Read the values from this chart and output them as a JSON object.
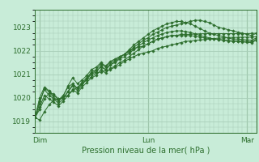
{
  "title": "Pression niveau de la mer( hPa )",
  "background_color": "#c8ecd8",
  "grid_color": "#a8ceb8",
  "line_color": "#2d6e2d",
  "marker_color": "#2d6e2d",
  "ylim": [
    1018.5,
    1023.75
  ],
  "yticks": [
    1019,
    1020,
    1021,
    1022,
    1023
  ],
  "xlim": [
    0,
    47
  ],
  "xtick_positions": [
    1,
    24,
    45
  ],
  "xtick_labels": [
    "Dim",
    "Lun",
    "Mar"
  ],
  "vline_positions": [
    1,
    24,
    45
  ],
  "series": [
    [
      1019.15,
      1019.05,
      1019.4,
      1019.7,
      1019.9,
      1019.95,
      1020.0,
      1020.1,
      1020.3,
      1020.45,
      1020.6,
      1020.75,
      1020.9,
      1021.05,
      1021.1,
      1021.15,
      1021.2,
      1021.3,
      1021.4,
      1021.55,
      1021.65,
      1021.75,
      1021.85,
      1021.9,
      1021.95,
      1022.0,
      1022.1,
      1022.15,
      1022.2,
      1022.25,
      1022.3,
      1022.35,
      1022.4,
      1022.42,
      1022.44,
      1022.46,
      1022.48,
      1022.5,
      1022.52,
      1022.54,
      1022.55,
      1022.56,
      1022.57,
      1022.57,
      1022.58,
      1022.58,
      1022.58,
      1022.6
    ],
    [
      1019.15,
      1019.5,
      1019.95,
      1020.2,
      1020.15,
      1019.95,
      1020.0,
      1020.25,
      1020.55,
      1020.4,
      1020.6,
      1020.8,
      1021.05,
      1021.15,
      1021.3,
      1021.2,
      1021.4,
      1021.55,
      1021.7,
      1021.85,
      1021.95,
      1022.1,
      1022.15,
      1022.2,
      1022.3,
      1022.4,
      1022.5,
      1022.55,
      1022.6,
      1022.65,
      1022.65,
      1022.7,
      1022.7,
      1022.7,
      1022.72,
      1022.72,
      1022.73,
      1022.73,
      1022.73,
      1022.73,
      1022.73,
      1022.73,
      1022.73,
      1022.73,
      1022.73,
      1022.73,
      1022.74,
      1022.75
    ],
    [
      1019.15,
      1019.75,
      1020.4,
      1020.25,
      1020.0,
      1019.85,
      1020.05,
      1020.5,
      1020.85,
      1020.6,
      1020.75,
      1020.95,
      1021.2,
      1021.3,
      1021.5,
      1021.35,
      1021.55,
      1021.65,
      1021.75,
      1021.85,
      1022.05,
      1022.25,
      1022.4,
      1022.55,
      1022.7,
      1022.85,
      1022.95,
      1023.05,
      1023.15,
      1023.2,
      1023.25,
      1023.25,
      1023.2,
      1023.15,
      1023.05,
      1022.95,
      1022.85,
      1022.75,
      1022.7,
      1022.65,
      1022.6,
      1022.55,
      1022.5,
      1022.5,
      1022.48,
      1022.46,
      1022.45,
      1022.55
    ],
    [
      1019.15,
      1020.0,
      1020.45,
      1020.3,
      1020.1,
      1019.9,
      1020.1,
      1020.45,
      1020.6,
      1020.4,
      1020.65,
      1020.85,
      1021.1,
      1021.2,
      1021.45,
      1021.3,
      1021.5,
      1021.6,
      1021.75,
      1021.85,
      1022.0,
      1022.15,
      1022.3,
      1022.45,
      1022.55,
      1022.7,
      1022.8,
      1022.9,
      1023.0,
      1023.05,
      1023.1,
      1023.15,
      1023.2,
      1023.25,
      1023.3,
      1023.3,
      1023.25,
      1023.2,
      1023.1,
      1023.0,
      1022.95,
      1022.9,
      1022.85,
      1022.8,
      1022.75,
      1022.7,
      1022.65,
      1022.75
    ],
    [
      1019.15,
      1019.85,
      1020.35,
      1020.1,
      1019.95,
      1019.75,
      1019.95,
      1020.25,
      1020.5,
      1020.3,
      1020.55,
      1020.8,
      1021.0,
      1021.1,
      1021.35,
      1021.2,
      1021.4,
      1021.5,
      1021.65,
      1021.75,
      1021.9,
      1022.05,
      1022.2,
      1022.35,
      1022.45,
      1022.55,
      1022.65,
      1022.72,
      1022.78,
      1022.82,
      1022.85,
      1022.85,
      1022.82,
      1022.78,
      1022.72,
      1022.65,
      1022.6,
      1022.55,
      1022.5,
      1022.48,
      1022.45,
      1022.42,
      1022.4,
      1022.4,
      1022.38,
      1022.36,
      1022.35,
      1022.45
    ],
    [
      1019.15,
      1019.6,
      1020.1,
      1019.95,
      1019.8,
      1019.65,
      1019.85,
      1020.1,
      1020.35,
      1020.2,
      1020.45,
      1020.65,
      1020.85,
      1020.95,
      1021.2,
      1021.05,
      1021.25,
      1021.35,
      1021.5,
      1021.6,
      1021.75,
      1021.9,
      1022.05,
      1022.2,
      1022.3,
      1022.4,
      1022.5,
      1022.55,
      1022.6,
      1022.65,
      1022.65,
      1022.65,
      1022.65,
      1022.65,
      1022.62,
      1022.58,
      1022.55,
      1022.52,
      1022.5,
      1022.48,
      1022.46,
      1022.44,
      1022.42,
      1022.42,
      1022.4,
      1022.4,
      1022.38,
      1022.5
    ]
  ]
}
